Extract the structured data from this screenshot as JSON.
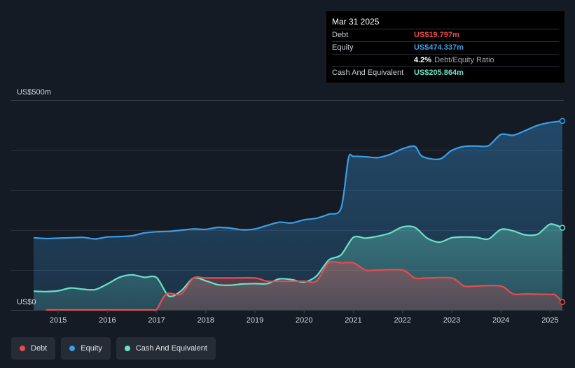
{
  "tooltip": {
    "date": "Mar 31 2025",
    "rows": [
      {
        "label": "Debt",
        "value": "US$19.797m",
        "color": "#e84c4c"
      },
      {
        "label": "Equity",
        "value": "US$474.337m",
        "color": "#3b9ee8"
      },
      {
        "label": "",
        "value": "4.2%",
        "unit": "Debt/Equity Ratio",
        "color": "#ffffff"
      },
      {
        "label": "Cash And Equivalent",
        "value": "US$205.864m",
        "color": "#6ce0c8"
      }
    ]
  },
  "legend": [
    {
      "label": "Debt",
      "color": "#e84c4c"
    },
    {
      "label": "Equity",
      "color": "#3b9ee8"
    },
    {
      "label": "Cash And Equivalent",
      "color": "#6ce0c8"
    }
  ],
  "chart_data": {
    "type": "area",
    "y_top_label": "US$500m",
    "y_bottom_label": "US$0",
    "ylim": [
      0,
      500
    ],
    "xlim": [
      2014.5,
      2025.25
    ],
    "x_ticks": [
      "2015",
      "2016",
      "2017",
      "2018",
      "2019",
      "2020",
      "2021",
      "2022",
      "2023",
      "2024",
      "2025"
    ],
    "grid": true,
    "legend_position": "bottom-left",
    "series": [
      {
        "name": "Equity",
        "color": "#3b9ee8",
        "points": [
          [
            2014.5,
            181
          ],
          [
            2014.75,
            179
          ],
          [
            2015.0,
            180
          ],
          [
            2015.25,
            181
          ],
          [
            2015.5,
            182
          ],
          [
            2015.75,
            178
          ],
          [
            2016.0,
            183
          ],
          [
            2016.25,
            184
          ],
          [
            2016.5,
            186
          ],
          [
            2016.75,
            193
          ],
          [
            2017.0,
            196
          ],
          [
            2017.25,
            197
          ],
          [
            2017.5,
            200
          ],
          [
            2017.75,
            203
          ],
          [
            2018.0,
            202
          ],
          [
            2018.25,
            207
          ],
          [
            2018.5,
            205
          ],
          [
            2018.75,
            201
          ],
          [
            2019.0,
            203
          ],
          [
            2019.25,
            212
          ],
          [
            2019.5,
            220
          ],
          [
            2019.75,
            218
          ],
          [
            2020.0,
            226
          ],
          [
            2020.25,
            230
          ],
          [
            2020.5,
            240
          ],
          [
            2020.75,
            255
          ],
          [
            2020.9,
            380
          ],
          [
            2021.0,
            385
          ],
          [
            2021.25,
            384
          ],
          [
            2021.5,
            382
          ],
          [
            2021.75,
            390
          ],
          [
            2022.0,
            404
          ],
          [
            2022.25,
            410
          ],
          [
            2022.4,
            385
          ],
          [
            2022.75,
            378
          ],
          [
            2023.0,
            400
          ],
          [
            2023.25,
            410
          ],
          [
            2023.5,
            411
          ],
          [
            2023.75,
            412
          ],
          [
            2024.0,
            440
          ],
          [
            2024.25,
            438
          ],
          [
            2024.5,
            450
          ],
          [
            2024.75,
            463
          ],
          [
            2025.0,
            470
          ],
          [
            2025.25,
            474
          ]
        ]
      },
      {
        "name": "Cash And Equivalent",
        "color": "#6ce0c8",
        "points": [
          [
            2014.5,
            47
          ],
          [
            2014.75,
            46
          ],
          [
            2015.0,
            48
          ],
          [
            2015.25,
            55
          ],
          [
            2015.5,
            52
          ],
          [
            2015.75,
            51
          ],
          [
            2016.0,
            65
          ],
          [
            2016.25,
            82
          ],
          [
            2016.5,
            88
          ],
          [
            2016.75,
            82
          ],
          [
            2017.0,
            81
          ],
          [
            2017.25,
            35
          ],
          [
            2017.5,
            48
          ],
          [
            2017.75,
            80
          ],
          [
            2018.0,
            73
          ],
          [
            2018.25,
            63
          ],
          [
            2018.5,
            62
          ],
          [
            2018.75,
            65
          ],
          [
            2019.0,
            66
          ],
          [
            2019.25,
            66
          ],
          [
            2019.5,
            78
          ],
          [
            2019.75,
            76
          ],
          [
            2020.0,
            70
          ],
          [
            2020.25,
            85
          ],
          [
            2020.5,
            125
          ],
          [
            2020.75,
            138
          ],
          [
            2021.0,
            182
          ],
          [
            2021.25,
            180
          ],
          [
            2021.5,
            185
          ],
          [
            2021.75,
            193
          ],
          [
            2022.0,
            208
          ],
          [
            2022.25,
            207
          ],
          [
            2022.5,
            180
          ],
          [
            2022.75,
            170
          ],
          [
            2023.0,
            181
          ],
          [
            2023.25,
            183
          ],
          [
            2023.5,
            182
          ],
          [
            2023.75,
            178
          ],
          [
            2024.0,
            202
          ],
          [
            2024.25,
            198
          ],
          [
            2024.5,
            188
          ],
          [
            2024.75,
            190
          ],
          [
            2025.0,
            215
          ],
          [
            2025.25,
            206
          ]
        ]
      },
      {
        "name": "Debt",
        "color": "#e84c4c",
        "points": [
          [
            2014.75,
            0
          ],
          [
            2015.0,
            0
          ],
          [
            2016.0,
            0
          ],
          [
            2016.9,
            0
          ],
          [
            2017.0,
            1
          ],
          [
            2017.2,
            40
          ],
          [
            2017.5,
            40
          ],
          [
            2017.75,
            80
          ],
          [
            2018.0,
            80
          ],
          [
            2018.5,
            80
          ],
          [
            2019.0,
            80
          ],
          [
            2019.25,
            72
          ],
          [
            2019.5,
            72
          ],
          [
            2020.0,
            72
          ],
          [
            2020.25,
            72
          ],
          [
            2020.5,
            118
          ],
          [
            2020.75,
            118
          ],
          [
            2021.0,
            118
          ],
          [
            2021.25,
            100
          ],
          [
            2021.5,
            100
          ],
          [
            2022.0,
            100
          ],
          [
            2022.25,
            80
          ],
          [
            2022.5,
            80
          ],
          [
            2023.0,
            80
          ],
          [
            2023.25,
            60
          ],
          [
            2023.5,
            60
          ],
          [
            2024.0,
            60
          ],
          [
            2024.25,
            40
          ],
          [
            2024.5,
            40
          ],
          [
            2025.0,
            39
          ],
          [
            2025.1,
            38
          ],
          [
            2025.25,
            19.797
          ]
        ]
      }
    ]
  }
}
